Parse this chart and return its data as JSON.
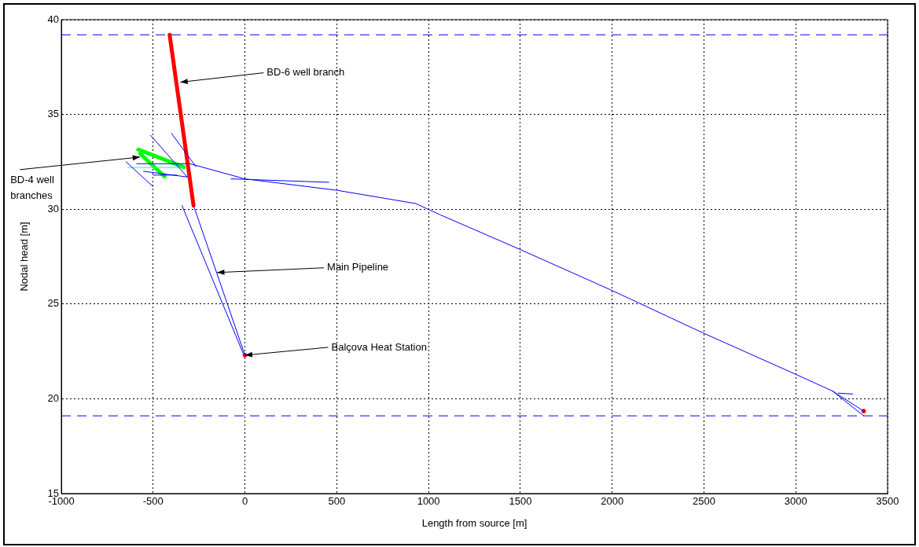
{
  "chart_data": {
    "type": "line",
    "xlabel": "Length from source [m]",
    "ylabel": "Nodal head [m]",
    "xlim": [
      -1000,
      3500
    ],
    "xticks": [
      -1000,
      -500,
      0,
      500,
      1000,
      1500,
      2000,
      2500,
      3000,
      3500
    ],
    "ylim": [
      15,
      40
    ],
    "yticks": [
      15,
      20,
      25,
      30,
      35,
      40
    ],
    "grid": true,
    "legend": false,
    "marker": "none",
    "line_style": "solid",
    "series": [
      {
        "color": "#0000ff",
        "x": [
          -590,
          -300,
          0,
          500,
          930,
          1065,
          1500,
          2000,
          2500,
          3000,
          3200,
          3370
        ],
        "values": [
          32.4,
          32.4,
          31.6,
          31.0,
          30.3,
          29.7,
          27.87,
          25.71,
          23.45,
          21.29,
          20.41,
          19.35
        ]
      },
      {
        "color": "#0000ff",
        "x": [
          3200,
          3370
        ],
        "values": [
          20.41,
          19.1
        ]
      },
      {
        "color": "#0000ff",
        "x": [
          3230,
          3310
        ],
        "values": [
          20.3,
          20.25
        ]
      },
      {
        "color": "#0000ff",
        "x": [
          -76,
          457
        ],
        "values": [
          31.6,
          31.42
        ]
      },
      {
        "color": "#0000ff",
        "x": [
          -280,
          0
        ],
        "values": [
          30.2,
          22.3
        ]
      },
      {
        "color": "#0000ff",
        "x": [
          -343,
          -10
        ],
        "values": [
          30.2,
          22.4
        ]
      },
      {
        "color": "#0000ff",
        "x": [
          -514,
          -314
        ],
        "values": [
          33.9,
          31.7
        ]
      },
      {
        "color": "#0000ff",
        "x": [
          -400,
          -267
        ],
        "values": [
          34.0,
          32.25
        ]
      },
      {
        "color": "#0000ff",
        "x": [
          -648,
          -501
        ],
        "values": [
          32.5,
          31.2
        ]
      },
      {
        "color": "#0000ff",
        "x": [
          -552,
          -314
        ],
        "values": [
          32.0,
          31.7
        ]
      },
      {
        "color": "#0000ff",
        "x": [
          -500,
          -371
        ],
        "values": [
          31.8,
          31.8
        ]
      },
      {
        "color": "#00ffff",
        "x": [
          -638,
          -333
        ],
        "values": [
          32.2,
          32.2
        ]
      },
      {
        "color": "#00ff00",
        "x": [
          -581,
          -333
        ],
        "values": [
          33.15,
          32.22
        ]
      },
      {
        "color": "#00ff00",
        "x": [
          -571,
          -438
        ],
        "values": [
          32.93,
          31.73
        ]
      },
      {
        "color": "#ff0000",
        "x": [
          -410,
          -280
        ],
        "values": [
          39.2,
          30.2
        ]
      },
      {
        "type": "scatter",
        "marker": "circle",
        "color": "#ff0000",
        "x": [
          0,
          3370
        ],
        "values": [
          22.3,
          19.35
        ]
      }
    ],
    "ref_lines": [
      {
        "axis": "y",
        "value": 39.2,
        "color": "#0000ff",
        "line_style": "dashed"
      },
      {
        "axis": "y",
        "value": 19.1,
        "color": "#0000ff",
        "line_style": "dashed"
      }
    ],
    "annotations": [
      {
        "text": "BD-6 well branch",
        "x": -352,
        "y": 36.7
      },
      {
        "text": "BD-4 well branches",
        "x": -571,
        "y": 32.75
      },
      {
        "text": "Main Pipeline",
        "x": -152,
        "y": 26.66
      },
      {
        "text": "Balçova Heat Station",
        "x": 0,
        "y": 22.3
      }
    ]
  }
}
